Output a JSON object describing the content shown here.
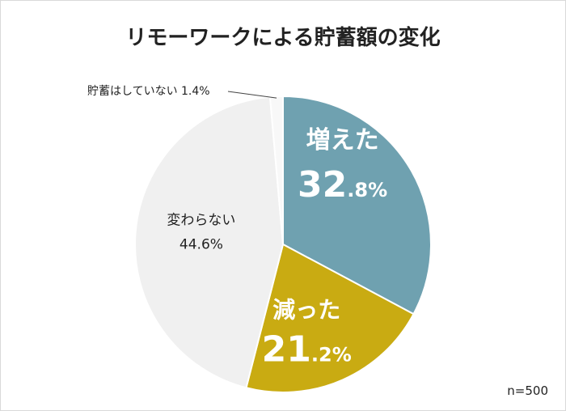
{
  "chart_data": {
    "type": "pie",
    "title": "リモーワークによる貯蓄額の変化",
    "note": "n=500",
    "unit": "%",
    "slices": [
      {
        "label": "増えた",
        "value": 32.8,
        "color": "#6fa1b0",
        "text_color": "#ffffff",
        "int": "32",
        "dec": ".8%"
      },
      {
        "label": "減った",
        "value": 21.2,
        "color": "#c9ab12",
        "text_color": "#ffffff",
        "int": "21",
        "dec": ".2%"
      },
      {
        "label": "変わらない",
        "value": 44.6,
        "color": "#f0f0f0",
        "text_color": "#222222",
        "value_text": "44.6%"
      },
      {
        "label": "貯蓄はしていない",
        "value": 1.4,
        "color": "#f8f8f8",
        "text_color": "#222222",
        "value_text": "1.4%"
      }
    ]
  }
}
